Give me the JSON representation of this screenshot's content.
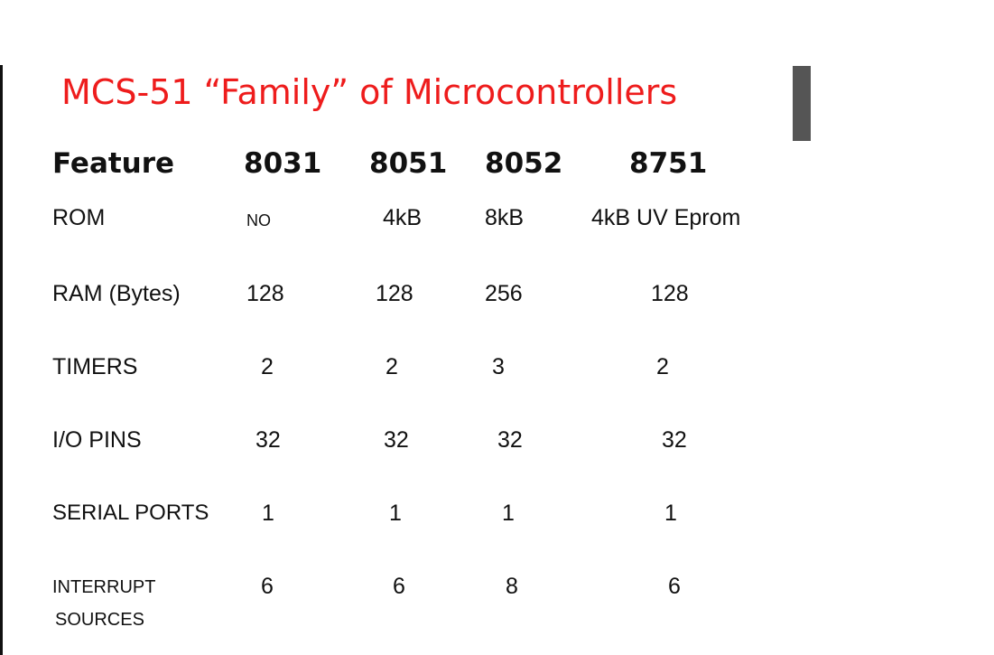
{
  "slide": {
    "title": "MCS-51 “Family” of Microcontrollers"
  },
  "table": {
    "headers": [
      "Feature",
      "8031",
      "8051",
      "8052",
      "8751"
    ],
    "rows": [
      {
        "label": "ROM",
        "values": [
          "NO",
          "4kB",
          "8kB",
          "4kB UV Eprom"
        ]
      },
      {
        "label": "RAM (Bytes)",
        "values": [
          "128",
          "128",
          "256",
          "128"
        ]
      },
      {
        "label": "TIMERS",
        "values": [
          "2",
          "2",
          "3",
          "2"
        ]
      },
      {
        "label": "I/O PINS",
        "values": [
          "32",
          "32",
          "32",
          "32"
        ]
      },
      {
        "label": "SERIAL PORTS",
        "values": [
          "1",
          "1",
          "1",
          "1"
        ]
      },
      {
        "label_line1": "INTERRUPT",
        "label_line2": "SOURCES",
        "values": [
          "6",
          "6",
          "8",
          "6"
        ]
      }
    ]
  }
}
